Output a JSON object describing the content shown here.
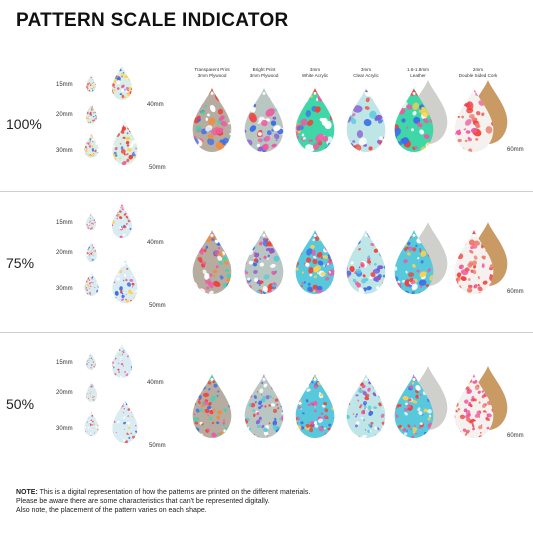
{
  "title": "PATTERN SCALE INDICATOR",
  "columns": [
    "Transparent Print\n3mm Plywood",
    "Bright Print\n3mm Plywood",
    "3mm\nWhite Acrylic",
    "3mm\nClear Acrylic",
    "1.6-1.8mm\nLeather",
    "2mm\nDouble Sided Cork"
  ],
  "sections": [
    {
      "scale": "100%",
      "sizes": [
        "15mm",
        "20mm",
        "30mm",
        "40mm",
        "50mm"
      ],
      "big_size": "60mm"
    },
    {
      "scale": "75%",
      "sizes": [
        "15mm",
        "20mm",
        "30mm",
        "40mm",
        "50mm"
      ],
      "big_size": "60mm"
    },
    {
      "scale": "50%",
      "sizes": [
        "15mm",
        "20mm",
        "30mm",
        "40mm",
        "50mm"
      ],
      "big_size": "60mm"
    }
  ],
  "note": {
    "label": "NOTE:",
    "line1": " This is a digital representation of how the patterns are printed on the different materials.",
    "line2": "Please be aware there are some characteristics that can't be represented digitally.",
    "line3": "Also note, the placement of the pattern varies on each shape."
  },
  "colors": {
    "print_light": "#d9efe6",
    "print_mint": "#3fd6a8",
    "print_cyan": "#58c9dc",
    "red": "#f0433c",
    "pink": "#ef5aa0",
    "blue": "#3e6ee8",
    "wood": "#c98a5a",
    "grey_board": "#b6aca0",
    "leather": "#cfcfcb",
    "cork": "#c99a63",
    "band": "#f3f3f3"
  }
}
